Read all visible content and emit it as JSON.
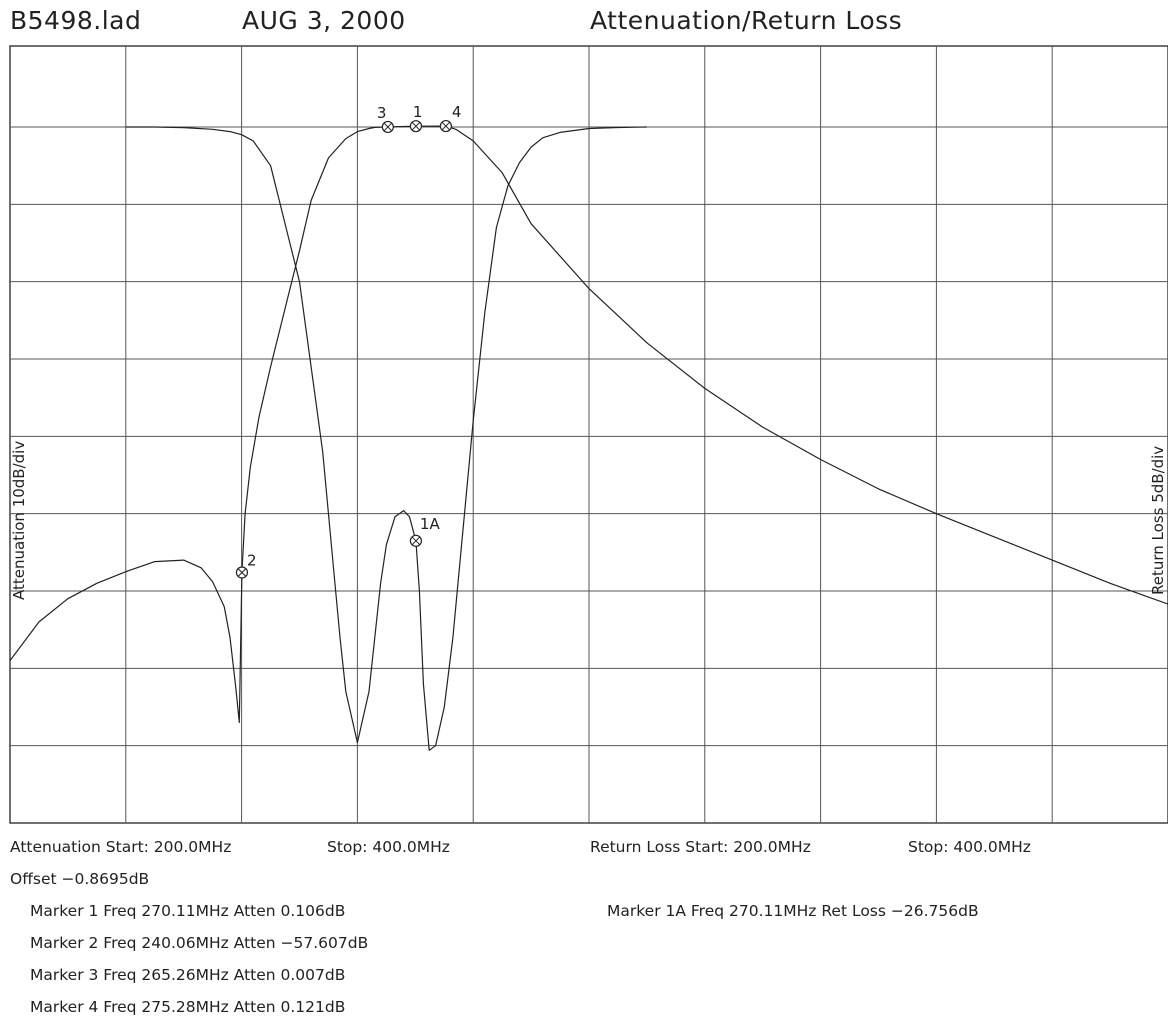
{
  "header": {
    "filename": "B5498.lad",
    "date": "AUG 3, 2000",
    "title": "Attenuation/Return Loss"
  },
  "chart_data": {
    "type": "line",
    "title": "Attenuation/Return Loss",
    "y_left_label": "Attenuation 10dB/div",
    "y_right_label": "Return Loss 5dB/div",
    "x_start_mhz": 200,
    "x_stop_mhz": 400,
    "x_divisions": 10,
    "y_divisions": 9,
    "reference_level_db": 0,
    "grid": true,
    "series": [
      {
        "name": "Attenuation",
        "scale_db_per_div": 10,
        "x": [
          200,
          205,
          210,
          215,
          220,
          225,
          230,
          233,
          235,
          237,
          238,
          239,
          239.6,
          240.06,
          240.6,
          241.5,
          243,
          245,
          248,
          250,
          252,
          255,
          258,
          260,
          262,
          263,
          265.26,
          270.11,
          275.28,
          277,
          280,
          285,
          290,
          300,
          310,
          320,
          330,
          340,
          350,
          360,
          370,
          380,
          390,
          400
        ],
        "y": [
          -69,
          -64,
          -61,
          -59,
          -57.5,
          -56.2,
          -56,
          -57,
          -58.8,
          -62,
          -66,
          -72.5,
          -77,
          -57.607,
          -50,
          -44,
          -37.5,
          -31,
          -22,
          -16,
          -9.5,
          -4,
          -1.5,
          -0.6,
          -0.2,
          -0.05,
          0.007,
          0.106,
          0.121,
          -0.3,
          -1.8,
          -5.9,
          -12.5,
          -20.9,
          -27.9,
          -33.8,
          -38.8,
          -43,
          -46.8,
          -50,
          -53,
          -56,
          -59,
          -61.7
        ]
      },
      {
        "name": "Return Loss",
        "scale_db_per_div": 5,
        "x": [
          220,
          225,
          230,
          235,
          238,
          240,
          242,
          245,
          250,
          254,
          256,
          257,
          258,
          260,
          262,
          263,
          264,
          265,
          266.5,
          268,
          269,
          270.11,
          270.7,
          271.4,
          272.4,
          273.5,
          275,
          276.5,
          278,
          280,
          282,
          284,
          286,
          288,
          290,
          292,
          295,
          300,
          305,
          310
        ],
        "y": [
          0,
          0,
          -0.04,
          -0.15,
          -0.3,
          -0.5,
          -0.9,
          -2.5,
          -10,
          -21,
          -29,
          -33,
          -36.5,
          -39.8,
          -36.5,
          -33,
          -29.5,
          -27,
          -25.2,
          -24.8,
          -25.2,
          -26.756,
          -30,
          -36,
          -40.3,
          -40,
          -37.5,
          -33,
          -27,
          -19,
          -12,
          -6.5,
          -3.8,
          -2.3,
          -1.3,
          -0.7,
          -0.35,
          -0.1,
          -0.03,
          0
        ]
      }
    ],
    "markers": [
      {
        "label": "1",
        "x": 270.11,
        "y": 0.106,
        "series": "Attenuation"
      },
      {
        "label": "2",
        "x": 240.06,
        "y": -57.607,
        "series": "Attenuation"
      },
      {
        "label": "3",
        "x": 265.26,
        "y": 0.007,
        "series": "Attenuation"
      },
      {
        "label": "4",
        "x": 275.28,
        "y": 0.121,
        "series": "Attenuation"
      },
      {
        "label": "1A",
        "x": 270.11,
        "y": -26.756,
        "series": "Return Loss"
      }
    ]
  },
  "footer": {
    "att_range": "Attenuation Start: 200.0MHz",
    "att_stop": "Stop: 400.0MHz",
    "rl_range": "Return Loss Start: 200.0MHz",
    "rl_stop": "Stop: 400.0MHz",
    "offset": "Offset −0.8695dB",
    "marker1": "Marker 1 Freq 270.11MHz Atten 0.106dB",
    "marker2": "Marker 2 Freq 240.06MHz Atten −57.607dB",
    "marker3": "Marker 3 Freq 265.26MHz Atten 0.007dB",
    "marker4": "Marker 4 Freq 275.28MHz Atten 0.121dB",
    "marker1a": "Marker 1A Freq 270.11MHz Ret Loss −26.756dB"
  }
}
